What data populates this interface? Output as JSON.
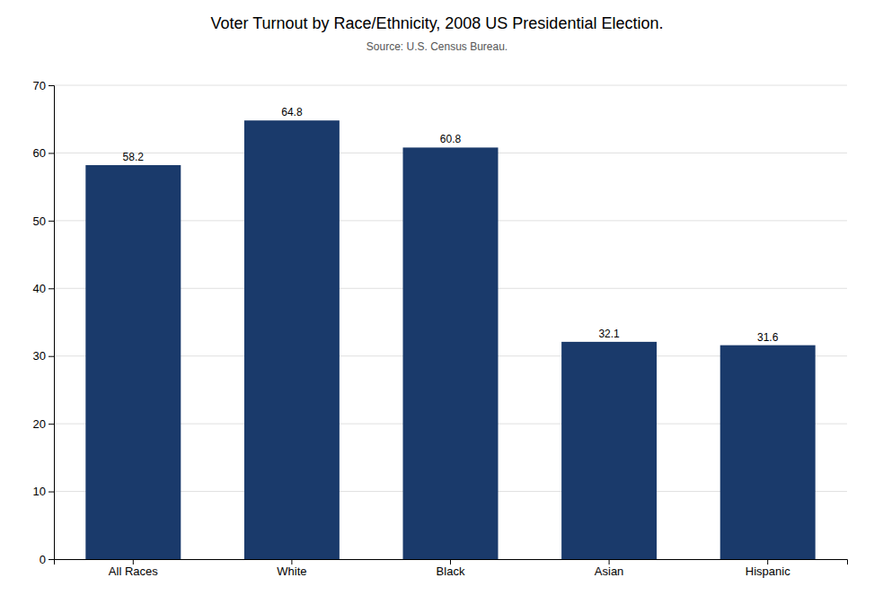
{
  "chart_data": {
    "type": "bar",
    "title": "Voter Turnout by Race/Ethnicity, 2008 US Presidential Election.",
    "subtitle": "Source: U.S. Census Bureau.",
    "categories": [
      "All Races",
      "White",
      "Black",
      "Asian",
      "Hispanic"
    ],
    "values": [
      58.2,
      64.8,
      60.8,
      32.1,
      31.6
    ],
    "color": "#1a3a6b",
    "ylim": [
      0,
      70
    ],
    "yticks": [
      0,
      10,
      20,
      30,
      40,
      50,
      60,
      70
    ],
    "grid": true,
    "data_labels": true
  }
}
